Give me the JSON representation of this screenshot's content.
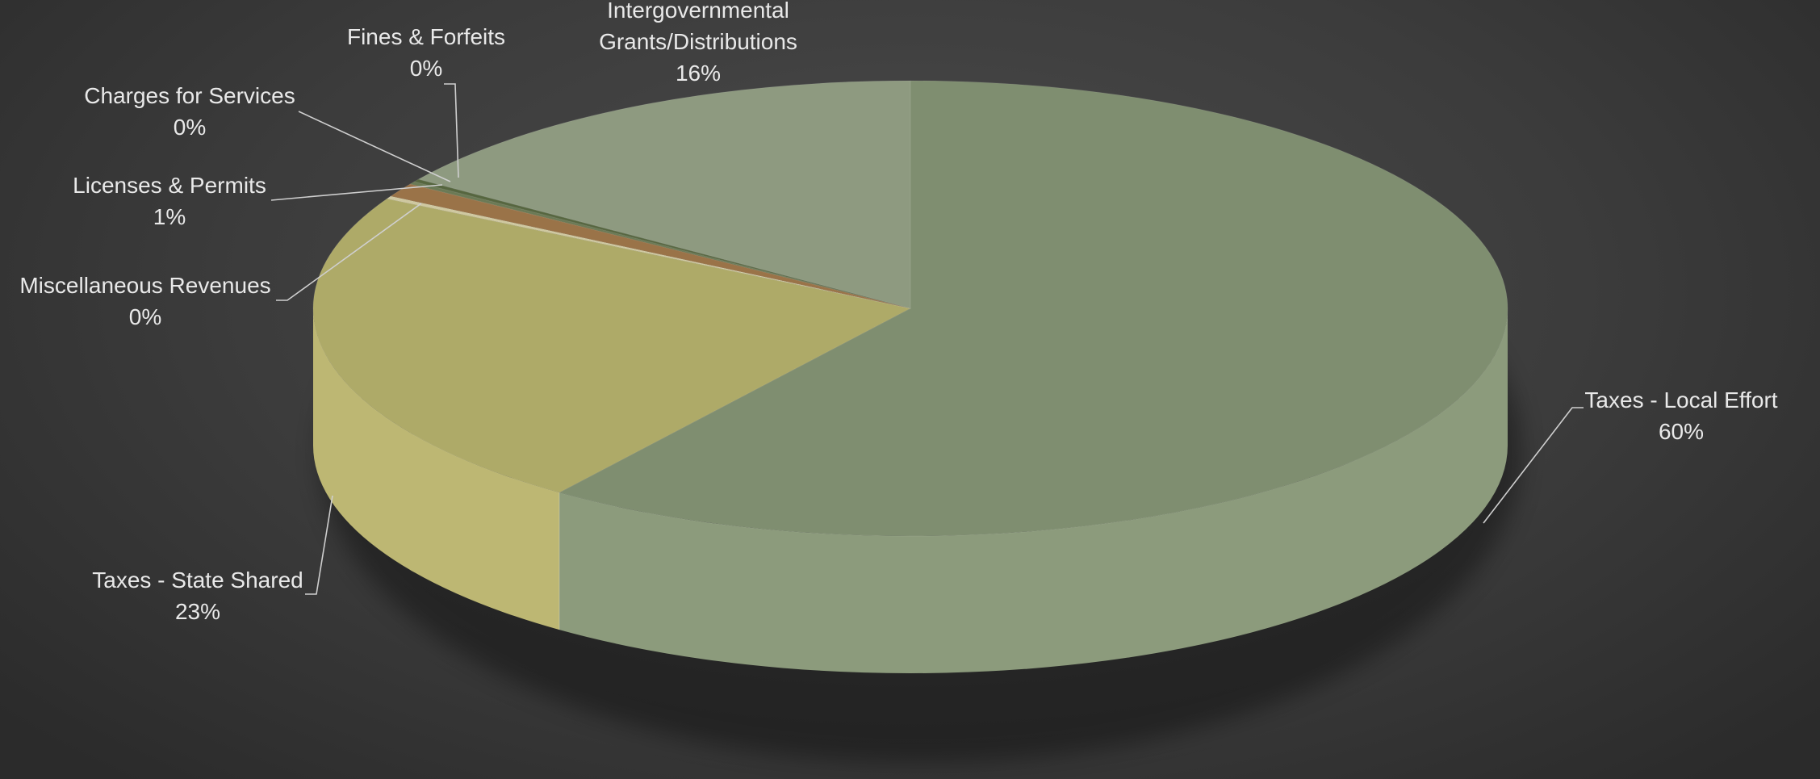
{
  "chart_data": {
    "type": "pie",
    "style": "3d",
    "title": "",
    "legend": "none",
    "slices": [
      {
        "name": "Taxes - Local Effort",
        "label": "60%",
        "value": 60.0,
        "color": "#7f8e70",
        "side_color": "#8c9b7c"
      },
      {
        "name": "Taxes - State Shared",
        "label": "23%",
        "value": 23.0,
        "color": "#aeaa68",
        "side_color": "#bdb773"
      },
      {
        "name": "Miscellaneous Revenues",
        "label": "0%",
        "value": 0.2,
        "color": "#cfc8a0",
        "side_color": "#d6cfa6"
      },
      {
        "name": "Licenses & Permits",
        "label": "1%",
        "value": 1.0,
        "color": "#9a7348",
        "side_color": "#a57c4f"
      },
      {
        "name": "Charges for Services",
        "label": "0%",
        "value": 0.2,
        "color": "#6b7a55",
        "side_color": "#75845e"
      },
      {
        "name": "Fines & Forfeits",
        "label": "0%",
        "value": 0.2,
        "color": "#56663f",
        "side_color": "#5f6f47"
      },
      {
        "name": "Intergovernmental Grants/Distributions",
        "label": "16%",
        "value": 15.4,
        "color": "#8e9a80",
        "side_color": "#98a48a"
      }
    ]
  }
}
